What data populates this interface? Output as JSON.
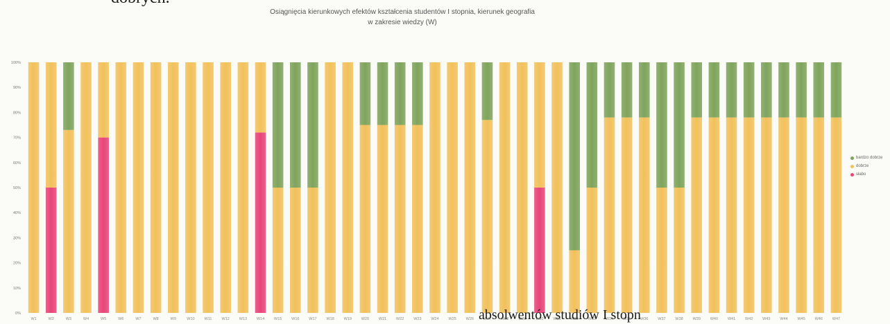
{
  "document": {
    "top_text": "dobrych.",
    "bottom_text": "absolwentów studiów I stopn"
  },
  "colors": {
    "bardzo_dobrze": "#7fa45c",
    "dobrze": "#f2c15c",
    "slabo": "#e8457a"
  },
  "chart_data": {
    "type": "bar",
    "stacked": true,
    "title": "Osiągnięcia kierunkowych efektów kształcenia studentów I stopnia, kierunek geografia",
    "subtitle": "w zakresie wiedzy (W)",
    "xlabel": "",
    "ylabel": "",
    "ylim": [
      0,
      100
    ],
    "yticks": [
      "0%",
      "10%",
      "20%",
      "30%",
      "40%",
      "50%",
      "60%",
      "70%",
      "80%",
      "90%",
      "100%"
    ],
    "grid": false,
    "legend_position": "right",
    "categories": [
      "W1",
      "W2",
      "W3",
      "W4",
      "W5",
      "W6",
      "W7",
      "W8",
      "W9",
      "W10",
      "W11",
      "W12",
      "W13",
      "W14",
      "W15",
      "W16",
      "W17",
      "W18",
      "W19",
      "W20",
      "W21",
      "W22",
      "W23",
      "W24",
      "W25",
      "W26",
      "W27",
      "W28",
      "W29",
      "W30",
      "W31",
      "W32",
      "W33",
      "W34",
      "W35",
      "W36",
      "W37",
      "W38",
      "W39",
      "W40",
      "W41",
      "W42",
      "W43",
      "W44",
      "W45",
      "W46",
      "W47"
    ],
    "series": [
      {
        "name": "słabo",
        "color": "#e8457a",
        "values": [
          0,
          50,
          0,
          0,
          70,
          0,
          0,
          0,
          0,
          0,
          0,
          0,
          0,
          72,
          0,
          0,
          0,
          0,
          0,
          0,
          0,
          0,
          0,
          0,
          0,
          0,
          0,
          0,
          0,
          50,
          0,
          0,
          0,
          0,
          0,
          0,
          0,
          0,
          0,
          0,
          0,
          0,
          0,
          0,
          0,
          0,
          0
        ]
      },
      {
        "name": "dobrze",
        "color": "#f2c15c",
        "values": [
          100,
          50,
          73,
          100,
          30,
          100,
          100,
          100,
          100,
          100,
          100,
          100,
          100,
          28,
          50,
          50,
          50,
          100,
          100,
          75,
          75,
          75,
          75,
          100,
          100,
          100,
          77,
          100,
          100,
          50,
          100,
          25,
          50,
          78,
          78,
          78,
          50,
          50,
          78,
          78,
          78,
          78,
          78,
          78,
          78,
          78,
          78
        ]
      },
      {
        "name": "bardzo dobrze",
        "color": "#7fa45c",
        "values": [
          0,
          0,
          27,
          0,
          0,
          0,
          0,
          0,
          0,
          0,
          0,
          0,
          0,
          0,
          50,
          50,
          50,
          0,
          0,
          25,
          25,
          25,
          25,
          0,
          0,
          0,
          23,
          0,
          0,
          0,
          0,
          75,
          50,
          22,
          22,
          22,
          50,
          50,
          22,
          22,
          22,
          22,
          22,
          22,
          22,
          22,
          22
        ]
      }
    ]
  }
}
